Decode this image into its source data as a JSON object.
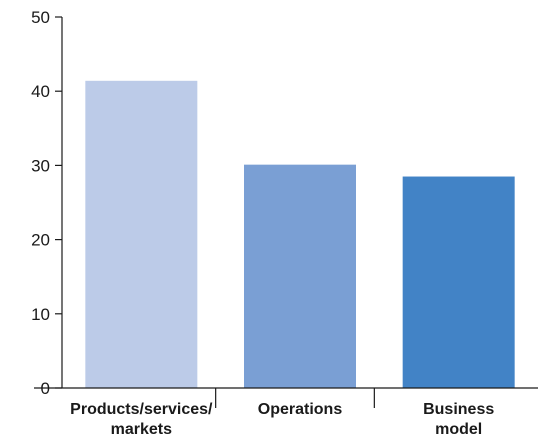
{
  "chart_data": {
    "type": "bar",
    "title": "",
    "xlabel": "",
    "ylabel": "",
    "categories": [
      [
        "Products/services/",
        "markets"
      ],
      [
        "Operations"
      ],
      [
        "Business",
        "model"
      ]
    ],
    "values": [
      41.4,
      30.1,
      28.5
    ],
    "colors": [
      "#bccbe8",
      "#7a9fd4",
      "#4283c6"
    ],
    "ylim": [
      0,
      50
    ],
    "yticks": [
      "0",
      "10",
      "20",
      "30",
      "40",
      "50"
    ],
    "grid": false,
    "legend": "none"
  }
}
